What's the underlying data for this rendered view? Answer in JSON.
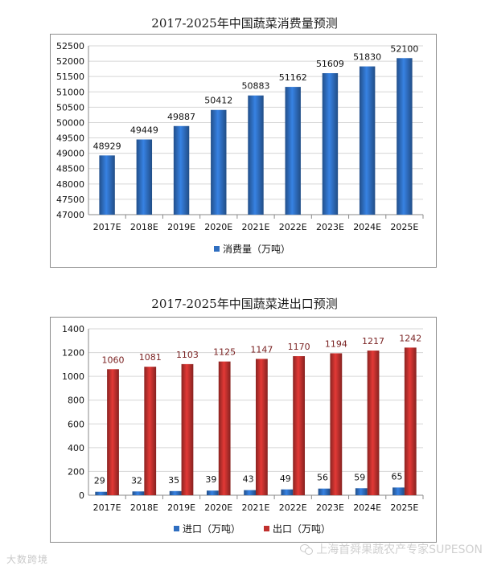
{
  "chart_data": [
    {
      "type": "bar",
      "title": "2017-2025年中国蔬菜消费量预测",
      "categories": [
        "2017E",
        "2018E",
        "2019E",
        "2020E",
        "2021E",
        "2022E",
        "2023E",
        "2024E",
        "2025E"
      ],
      "series": [
        {
          "name": "消费量（万吨）",
          "values": [
            48929,
            49449,
            49887,
            50412,
            50883,
            51162,
            51609,
            51830,
            52100
          ],
          "color": "#2f6ec0"
        }
      ],
      "ylim": [
        47000,
        52500
      ],
      "yticks": [
        47000,
        47500,
        48000,
        48500,
        49000,
        49500,
        50000,
        50500,
        51000,
        51500,
        52000,
        52500
      ],
      "grid": true,
      "legend": "bottom"
    },
    {
      "type": "bar",
      "title": "2017-2025年中国蔬菜进出口预测",
      "categories": [
        "2017E",
        "2018E",
        "2019E",
        "2020E",
        "2021E",
        "2022E",
        "2023E",
        "2024E",
        "2025E"
      ],
      "series": [
        {
          "name": "进口（万吨）",
          "values": [
            29,
            32,
            35,
            39,
            43,
            49,
            56,
            59,
            65
          ],
          "color": "#2f6ec0"
        },
        {
          "name": "出口（万吨）",
          "values": [
            1060,
            1081,
            1103,
            1125,
            1147,
            1170,
            1194,
            1217,
            1242
          ],
          "color": "#c0302e"
        }
      ],
      "ylim": [
        0,
        1400
      ],
      "yticks": [
        0,
        200,
        400,
        600,
        800,
        1000,
        1200,
        1400
      ],
      "grid": true,
      "legend": "bottom"
    }
  ],
  "watermarks": {
    "left": "大数跨境",
    "right": "上海首舜果蔬农产专家SUPESON"
  }
}
